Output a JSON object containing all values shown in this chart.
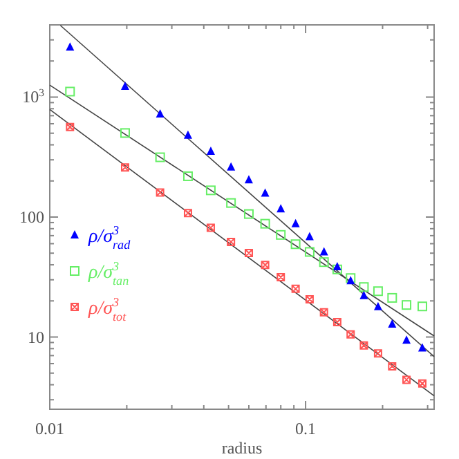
{
  "chart_data": {
    "type": "scatter",
    "xlabel": "radius",
    "log": "xy",
    "xlim": [
      0.01,
      0.318
    ],
    "ylim": [
      2.5,
      4000
    ],
    "xticks": [
      0.01,
      {
        "value": 0.02,
        "label": null
      },
      {
        "value": 0.03,
        "label": null
      },
      {
        "value": 0.04,
        "label": null
      },
      {
        "value": 0.05,
        "label": null
      },
      {
        "value": 0.06,
        "label": null
      },
      {
        "value": 0.07,
        "label": null
      },
      {
        "value": 0.08,
        "label": null
      },
      {
        "value": 0.09,
        "label": null
      },
      0.1,
      {
        "value": 0.2,
        "label": null
      },
      {
        "value": 0.3,
        "label": null
      }
    ],
    "yticks": [
      {
        "value": 3,
        "label": null
      },
      {
        "value": 4,
        "label": null
      },
      {
        "value": 5,
        "label": null
      },
      {
        "value": 6,
        "label": null
      },
      {
        "value": 7,
        "label": null
      },
      {
        "value": 8,
        "label": null
      },
      {
        "value": 9,
        "label": null
      },
      10,
      {
        "value": 20,
        "label": null
      },
      {
        "value": 30,
        "label": null
      },
      {
        "value": 40,
        "label": null
      },
      {
        "value": 50,
        "label": null
      },
      {
        "value": 60,
        "label": null
      },
      {
        "value": 70,
        "label": null
      },
      {
        "value": 80,
        "label": null
      },
      {
        "value": 90,
        "label": null
      },
      100,
      {
        "value": 200,
        "label": null
      },
      {
        "value": 300,
        "label": null
      },
      {
        "value": 400,
        "label": null
      },
      {
        "value": 500,
        "label": null
      },
      {
        "value": 600,
        "label": null
      },
      {
        "value": 700,
        "label": null
      },
      {
        "value": 800,
        "label": null
      },
      {
        "value": 900,
        "label": null
      },
      {
        "value": 1000,
        "label": "10$^{3}$"
      },
      {
        "value": 2000,
        "label": null
      },
      {
        "value": 3000,
        "label": null
      }
    ],
    "grid": false,
    "legend": "left",
    "series": [
      {
        "name": "ρ/σ$^{3}$$_{rad}$",
        "color": "#0000ff",
        "marker": "triangle",
        "x": [
          0.012,
          0.0197,
          0.027,
          0.0347,
          0.0426,
          0.0511,
          0.06,
          0.0695,
          0.08,
          0.0914,
          0.1037,
          0.118,
          0.133,
          0.15,
          0.169,
          0.192,
          0.218,
          0.248,
          0.286
        ],
        "values": [
          2610,
          1226,
          723,
          481,
          353,
          261,
          204,
          158,
          117,
          88,
          68.5,
          51.2,
          38.5,
          29.4,
          22.1,
          17.9,
          12.8,
          9.4,
          8.1
        ]
      },
      {
        "name": "ρ/σ$^{3}$$_{tan}$",
        "color": "#66ee66",
        "marker": "square",
        "x": [
          0.012,
          0.0197,
          0.027,
          0.0347,
          0.0426,
          0.0511,
          0.06,
          0.0695,
          0.08,
          0.0914,
          0.1037,
          0.118,
          0.133,
          0.15,
          0.169,
          0.192,
          0.218,
          0.248,
          0.286
        ],
        "values": [
          1112,
          502,
          315,
          219,
          167,
          131,
          106,
          88,
          71,
          59.4,
          51.2,
          42.1,
          36.6,
          31.0,
          26.1,
          24.1,
          21.2,
          18.5,
          18.0
        ]
      },
      {
        "name": "ρ/σ$^{3}$$_{tot}$",
        "color": "#ff5555",
        "marker": "cross",
        "x": [
          0.012,
          0.0197,
          0.027,
          0.0347,
          0.0426,
          0.0511,
          0.06,
          0.0695,
          0.08,
          0.0914,
          0.1037,
          0.118,
          0.133,
          0.15,
          0.169,
          0.192,
          0.218,
          0.248,
          0.286
        ],
        "values": [
          563,
          259,
          160,
          108,
          81.5,
          62.1,
          50.2,
          39.9,
          31.5,
          25.2,
          20.6,
          16.1,
          13.3,
          10.5,
          8.5,
          7.3,
          5.7,
          4.4,
          4.1
        ]
      },
      {
        "type": "line",
        "color": "#444444",
        "marker": "none",
        "x": [
          0.011,
          0.318
        ],
        "values": [
          3960,
          6.86
        ]
      },
      {
        "type": "line",
        "color": "#444444",
        "marker": "none",
        "x": [
          0.01,
          0.318
        ],
        "values": [
          1259,
          10.2
        ]
      },
      {
        "type": "line",
        "color": "#444444",
        "marker": "none",
        "x": [
          0.01,
          0.318
        ],
        "values": [
          788,
          3.23
        ]
      }
    ]
  }
}
